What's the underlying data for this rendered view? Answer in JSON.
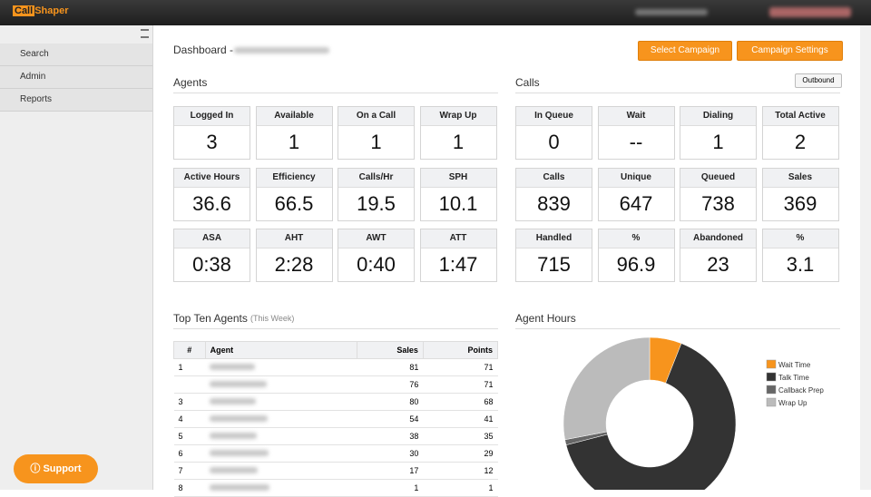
{
  "header": {
    "logo_prefix": "Call",
    "logo_suffix": "Shaper"
  },
  "sidebar": {
    "items": [
      "Search",
      "Admin",
      "Reports"
    ]
  },
  "page": {
    "title": "Dashboard -",
    "buttons": [
      "Select Campaign",
      "Campaign Settings"
    ]
  },
  "agents": {
    "title": "Agents",
    "tiles": [
      {
        "label": "Logged In",
        "value": "3"
      },
      {
        "label": "Available",
        "value": "1"
      },
      {
        "label": "On a Call",
        "value": "1"
      },
      {
        "label": "Wrap Up",
        "value": "1"
      },
      {
        "label": "Active Hours",
        "value": "36.6"
      },
      {
        "label": "Efficiency",
        "value": "66.5"
      },
      {
        "label": "Calls/Hr",
        "value": "19.5"
      },
      {
        "label": "SPH",
        "value": "10.1"
      },
      {
        "label": "ASA",
        "value": "0:38"
      },
      {
        "label": "AHT",
        "value": "2:28"
      },
      {
        "label": "AWT",
        "value": "0:40"
      },
      {
        "label": "ATT",
        "value": "1:47"
      }
    ]
  },
  "calls": {
    "title": "Calls",
    "dropdown": "Outbound",
    "tiles": [
      {
        "label": "In Queue",
        "value": "0"
      },
      {
        "label": "Wait",
        "value": "--"
      },
      {
        "label": "Dialing",
        "value": "1"
      },
      {
        "label": "Total Active",
        "value": "2"
      },
      {
        "label": "Calls",
        "value": "839"
      },
      {
        "label": "Unique",
        "value": "647"
      },
      {
        "label": "Queued",
        "value": "738"
      },
      {
        "label": "Sales",
        "value": "369"
      },
      {
        "label": "Handled",
        "value": "715"
      },
      {
        "label": "%",
        "value": "96.9"
      },
      {
        "label": "Abandoned",
        "value": "23"
      },
      {
        "label": "%",
        "value": "3.1"
      }
    ]
  },
  "top_agents": {
    "title": "Top Ten Agents",
    "subtitle": "(This Week)",
    "columns": [
      "#",
      "Agent",
      "Sales",
      "Points"
    ],
    "rows": [
      {
        "rank": "1",
        "sales": "81",
        "points": "71"
      },
      {
        "rank": null,
        "sales": "76",
        "points": "71"
      },
      {
        "rank": "3",
        "sales": "80",
        "points": "68"
      },
      {
        "rank": "4",
        "sales": "54",
        "points": "41"
      },
      {
        "rank": "5",
        "sales": "38",
        "points": "35"
      },
      {
        "rank": "6",
        "sales": "30",
        "points": "29"
      },
      {
        "rank": "7",
        "sales": "17",
        "points": "12"
      },
      {
        "rank": "8",
        "sales": "1",
        "points": "1"
      }
    ]
  },
  "agent_hours": {
    "type": "pie",
    "title": "Agent Hours",
    "categories": [
      "Wait Time",
      "Talk Time",
      "Callback Prep",
      "Wrap Up"
    ],
    "values": [
      6,
      65,
      1,
      28
    ],
    "colors": [
      "#f7941d",
      "#333333",
      "#666666",
      "#bbbbbb"
    ]
  },
  "support": {
    "label": "Support"
  }
}
